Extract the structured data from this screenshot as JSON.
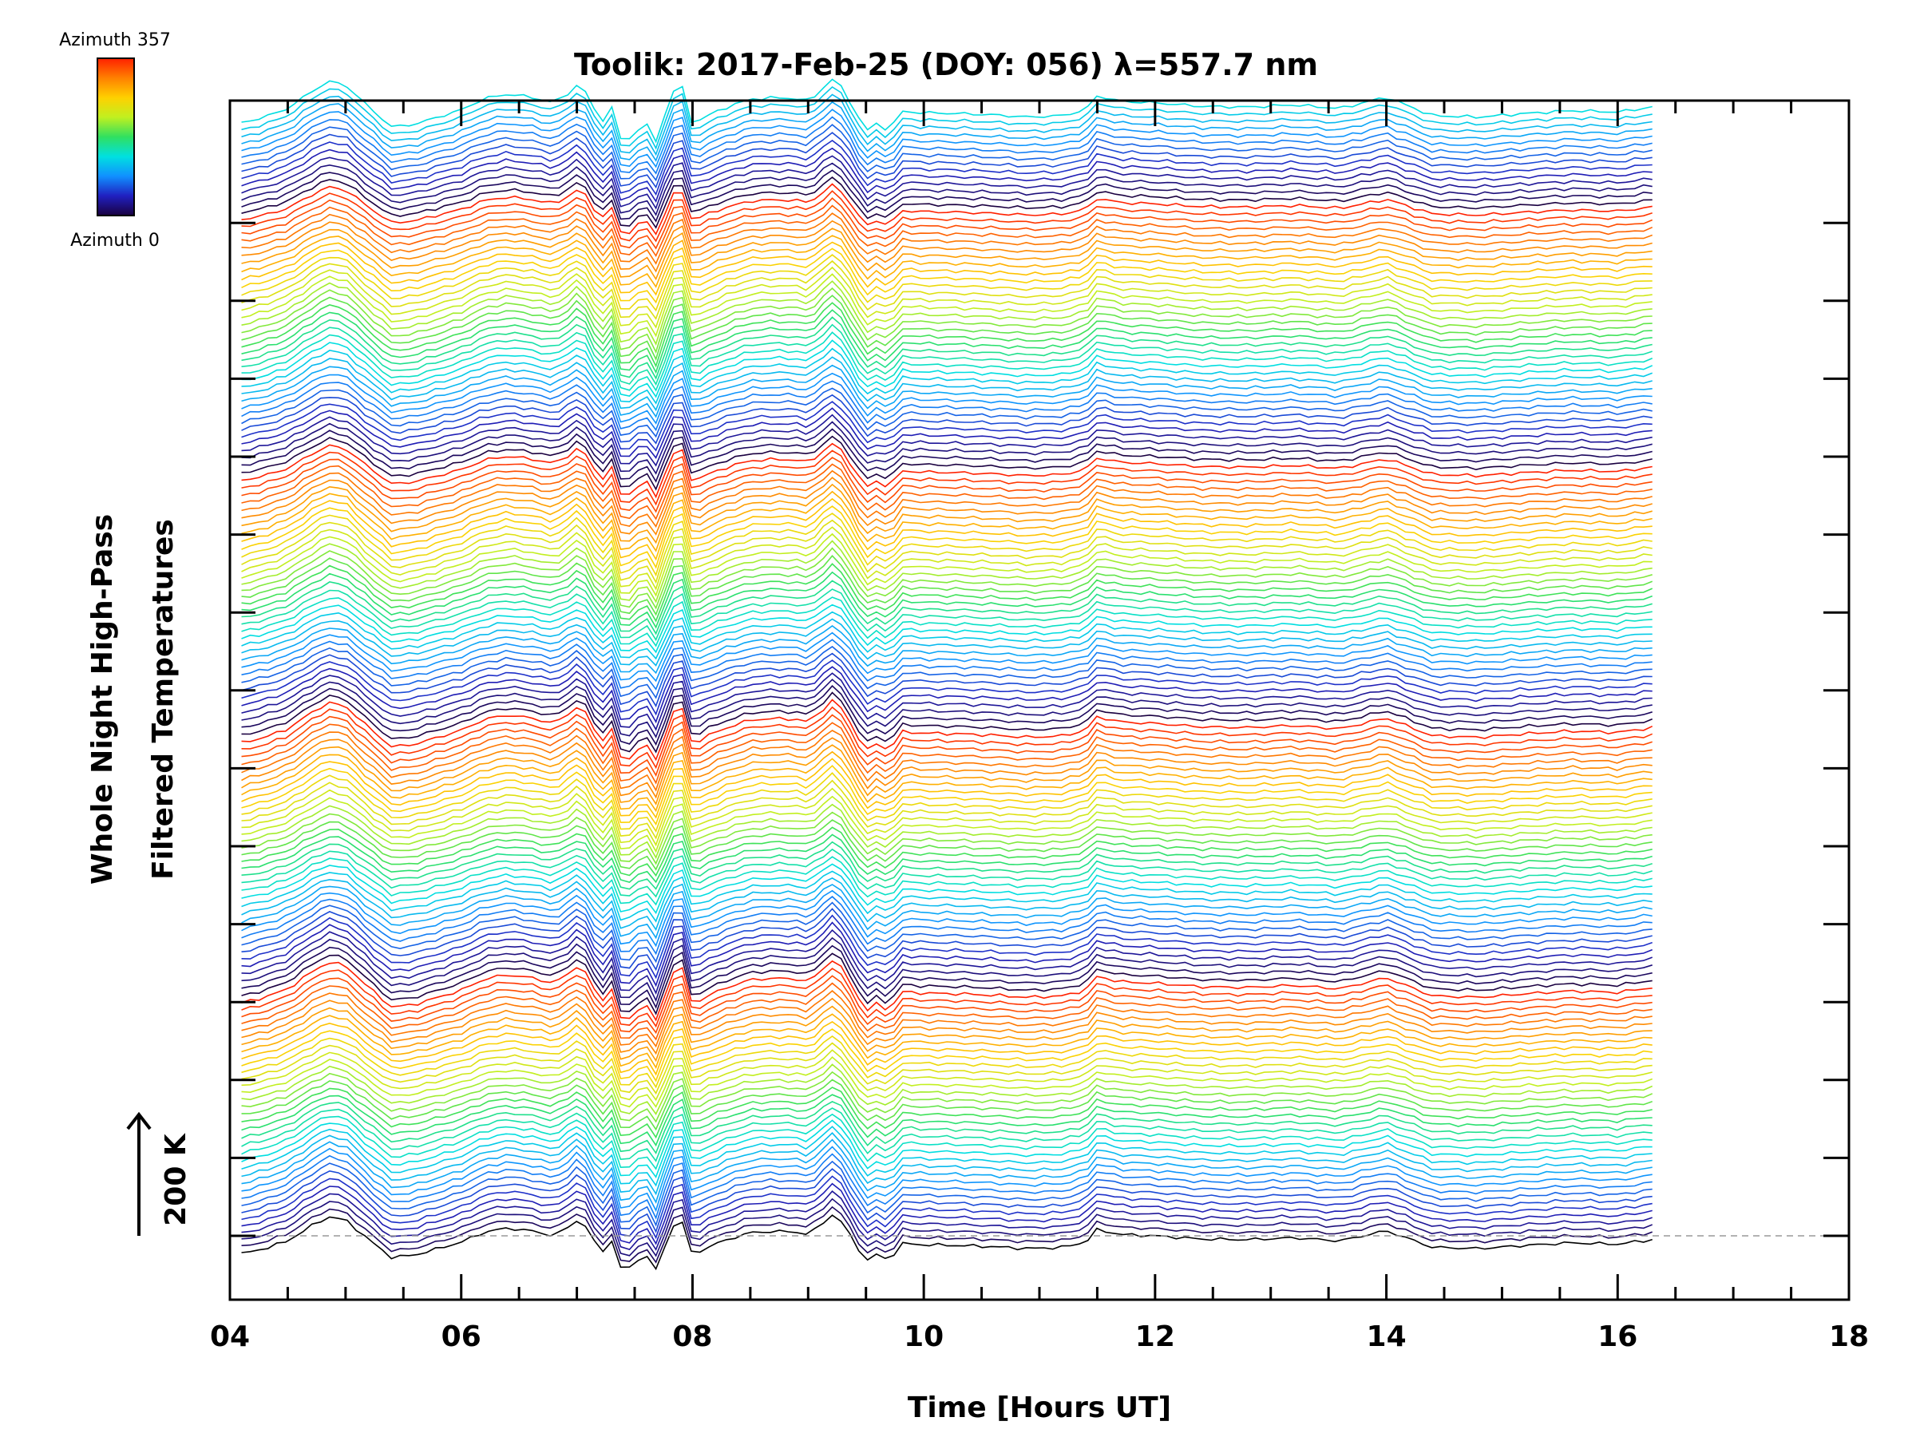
{
  "chart_data": {
    "type": "line",
    "title": "Toolik: 2017-Feb-25 (DOY: 056) λ=557.7 nm",
    "xlabel": "Time [Hours UT]",
    "ylabel_line1": "Whole Night High-Pass",
    "ylabel_line2": "Filtered Temperatures",
    "scale_bar_label": "200 K",
    "xlim": [
      4,
      18
    ],
    "x_ticks": [
      4,
      6,
      8,
      10,
      12,
      14,
      16,
      18
    ],
    "x_tick_labels": [
      "04",
      "06",
      "08",
      "10",
      "12",
      "14",
      "16",
      "18"
    ],
    "x_minor_step": 0.5,
    "y_ticks_unlabeled": 14,
    "colorbar": {
      "top_label": "Azimuth 357",
      "bottom_label": "Azimuth 0",
      "colormap": "rainbow",
      "stops": [
        "#1a0040",
        "#2020c0",
        "#1090ff",
        "#00e0e0",
        "#30e060",
        "#c0f020",
        "#ffd000",
        "#ff8000",
        "#ff2000"
      ]
    },
    "baseline_style": "dashed",
    "x_start": 4.1,
    "x_end": 16.3,
    "series_count": 158,
    "series_offset_K": 11.3,
    "azimuth_range_deg": [
      0,
      357
    ],
    "azimuth_cycle_length": 36,
    "envelope": {
      "description": "Common high-pass filtered temperature perturbation (K) shared by all azimuth traces, each trace offset vertically",
      "time_hours_UT": [
        4.1,
        4.3,
        4.5,
        4.7,
        4.85,
        5.0,
        5.2,
        5.4,
        5.6,
        5.8,
        6.0,
        6.2,
        6.4,
        6.6,
        6.8,
        6.9,
        7.0,
        7.1,
        7.2,
        7.3,
        7.4,
        7.5,
        7.6,
        7.7,
        7.8,
        7.9,
        8.0,
        8.1,
        8.3,
        8.5,
        8.7,
        8.9,
        9.0,
        9.1,
        9.2,
        9.3,
        9.4,
        9.5,
        9.6,
        9.7,
        9.8,
        10.0,
        10.3,
        10.6,
        10.9,
        11.2,
        11.4,
        11.5,
        11.7,
        12.0,
        12.4,
        12.8,
        13.2,
        13.6,
        14.0,
        14.4,
        14.8,
        15.2,
        15.6,
        16.0,
        16.3
      ],
      "temperature_K": [
        -28,
        -20,
        -8,
        15,
        30,
        25,
        -6,
        -34,
        -30,
        -20,
        -10,
        6,
        12,
        8,
        0,
        10,
        24,
        12,
        -30,
        -6,
        -62,
        -40,
        -30,
        -58,
        10,
        28,
        -32,
        -20,
        -6,
        5,
        7,
        6,
        2,
        15,
        34,
        20,
        -10,
        -40,
        -28,
        -40,
        -12,
        -14,
        -15,
        -17,
        -20,
        -18,
        -10,
        10,
        2,
        0,
        -5,
        -6,
        -3,
        -8,
        8,
        -18,
        -20,
        -15,
        -11,
        -13,
        -6
      ]
    }
  }
}
